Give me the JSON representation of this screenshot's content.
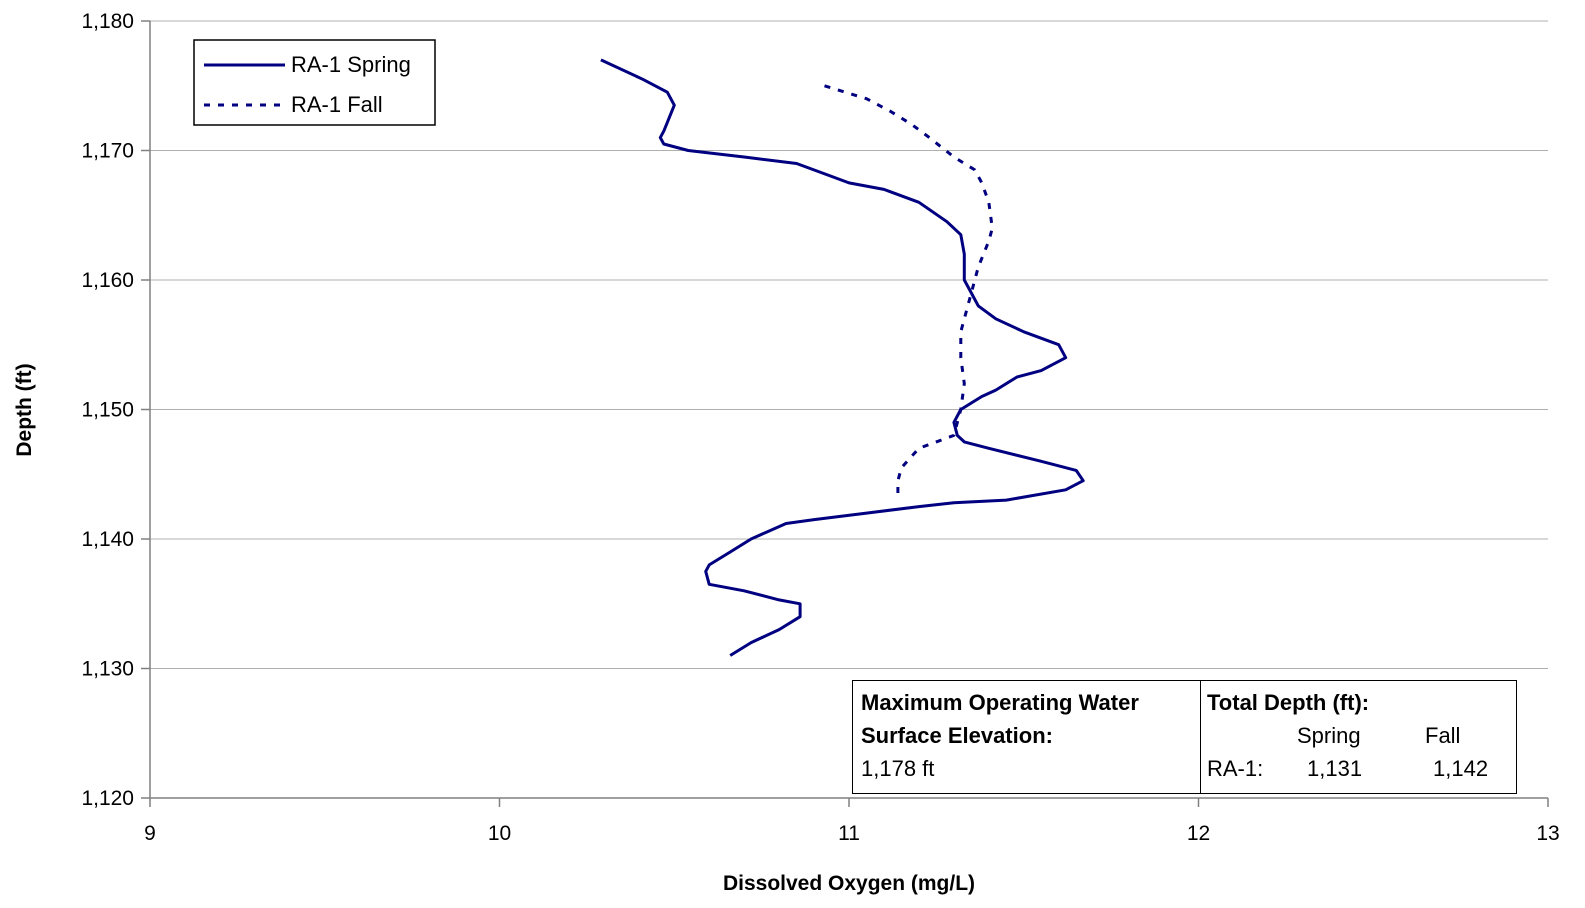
{
  "chart_data": {
    "type": "line",
    "xlabel": "Dissolved Oxygen (mg/L)",
    "ylabel": "Depth (ft)",
    "xlim": [
      9,
      13
    ],
    "ylim": [
      1120,
      1180
    ],
    "x_ticks": [
      9,
      10,
      11,
      12,
      13
    ],
    "y_ticks": [
      1120,
      1130,
      1140,
      1150,
      1160,
      1170,
      1180
    ],
    "x_tick_labels": [
      "9",
      "10",
      "11",
      "12",
      "13"
    ],
    "y_tick_labels": [
      "1,120",
      "1,130",
      "1,140",
      "1,150",
      "1,160",
      "1,170",
      "1,180"
    ],
    "grid": "horizontal",
    "legend_position": "top-left",
    "series": [
      {
        "name": "RA-1 Spring",
        "style": "solid",
        "color": "#000080",
        "points": [
          [
            10.29,
            1177
          ],
          [
            10.41,
            1175.5
          ],
          [
            10.48,
            1174.5
          ],
          [
            10.5,
            1173.5
          ],
          [
            10.47,
            1171.5
          ],
          [
            10.46,
            1171
          ],
          [
            10.47,
            1170.5
          ],
          [
            10.54,
            1170
          ],
          [
            10.7,
            1169.5
          ],
          [
            10.85,
            1169
          ],
          [
            10.95,
            1168
          ],
          [
            11.0,
            1167.5
          ],
          [
            11.1,
            1167
          ],
          [
            11.2,
            1166
          ],
          [
            11.28,
            1164.5
          ],
          [
            11.32,
            1163.5
          ],
          [
            11.33,
            1162
          ],
          [
            11.33,
            1160
          ],
          [
            11.35,
            1159
          ],
          [
            11.37,
            1158
          ],
          [
            11.42,
            1157
          ],
          [
            11.5,
            1156
          ],
          [
            11.6,
            1155
          ],
          [
            11.62,
            1154
          ],
          [
            11.55,
            1153
          ],
          [
            11.48,
            1152.5
          ],
          [
            11.42,
            1151.5
          ],
          [
            11.38,
            1151
          ],
          [
            11.32,
            1150
          ],
          [
            11.3,
            1149
          ],
          [
            11.31,
            1148
          ],
          [
            11.33,
            1147.5
          ],
          [
            11.4,
            1147
          ],
          [
            11.55,
            1146
          ],
          [
            11.65,
            1145.3
          ],
          [
            11.67,
            1144.5
          ],
          [
            11.62,
            1143.8
          ],
          [
            11.45,
            1143
          ],
          [
            11.3,
            1142.8
          ],
          [
            11.2,
            1142.5
          ],
          [
            11.05,
            1142
          ],
          [
            10.9,
            1141.5
          ],
          [
            10.82,
            1141.2
          ],
          [
            10.77,
            1140.6
          ],
          [
            10.72,
            1140
          ],
          [
            10.66,
            1139
          ],
          [
            10.6,
            1138
          ],
          [
            10.59,
            1137.5
          ],
          [
            10.6,
            1136.5
          ],
          [
            10.7,
            1136
          ],
          [
            10.8,
            1135.3
          ],
          [
            10.86,
            1135
          ],
          [
            10.86,
            1134
          ],
          [
            10.8,
            1133
          ],
          [
            10.72,
            1132
          ],
          [
            10.66,
            1131
          ]
        ]
      },
      {
        "name": "RA-1 Fall",
        "style": "dotted",
        "color": "#000080",
        "points": [
          [
            10.93,
            1175
          ],
          [
            11.05,
            1174
          ],
          [
            11.12,
            1173
          ],
          [
            11.18,
            1172
          ],
          [
            11.23,
            1171
          ],
          [
            11.3,
            1169.5
          ],
          [
            11.36,
            1168.5
          ],
          [
            11.38,
            1167.5
          ],
          [
            11.4,
            1166
          ],
          [
            11.41,
            1164
          ],
          [
            11.4,
            1163
          ],
          [
            11.37,
            1161
          ],
          [
            11.34,
            1158
          ],
          [
            11.32,
            1156
          ],
          [
            11.32,
            1154
          ],
          [
            11.33,
            1152
          ],
          [
            11.32,
            1150
          ],
          [
            11.3,
            1148
          ],
          [
            11.2,
            1147
          ],
          [
            11.15,
            1145.5
          ],
          [
            11.14,
            1144.5
          ],
          [
            11.14,
            1143
          ]
        ]
      }
    ]
  },
  "note": {
    "left_title_line1": "Maximum Operating Water",
    "left_title_line2": "Surface Elevation:",
    "left_value": "1,178 ft",
    "right_title": "Total Depth (ft):",
    "col_spring": "Spring",
    "col_fall": "Fall",
    "row_label": "RA-1:",
    "spring_value": "1,131",
    "fall_value": "1,142"
  }
}
